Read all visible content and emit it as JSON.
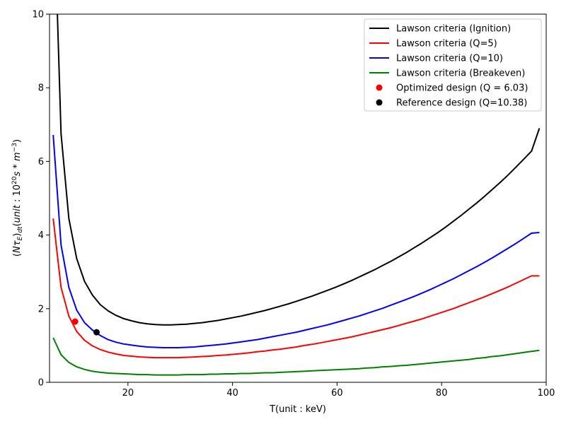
{
  "chart_data": {
    "type": "line",
    "xlabel": "T(unit : keV)",
    "ylabel": "(NτE)dt(unit:10^20 s*m^-3)",
    "xlim": [
      5,
      100
    ],
    "ylim": [
      0,
      10
    ],
    "xticks": [
      20,
      40,
      60,
      80,
      100
    ],
    "yticks": [
      0,
      2,
      4,
      6,
      8,
      10
    ],
    "legend_position": "top-right",
    "grid": false,
    "series": [
      {
        "name": "Lawson criteria (Ignition)",
        "color": "#000000",
        "x": [
          6.5,
          7.2,
          8.7,
          10.2,
          11.7,
          13.2,
          14.7,
          16.2,
          17.7,
          19.2,
          20.7,
          22.2,
          23.7,
          25.2,
          26.7,
          28.2,
          29.7,
          31.2,
          32.7,
          34.2,
          35.7,
          37.2,
          38.7,
          40.2,
          41.7,
          43.2,
          44.7,
          46.2,
          47.7,
          49.2,
          50.7,
          52.2,
          53.7,
          55.2,
          56.7,
          58.2,
          59.7,
          61.2,
          62.7,
          64.2,
          65.7,
          67.2,
          68.7,
          70.2,
          71.7,
          73.2,
          74.7,
          76.2,
          77.7,
          79.2,
          80.7,
          82.2,
          83.7,
          85.2,
          86.7,
          88.2,
          89.7,
          91.2,
          92.7,
          94.2,
          95.7,
          97.2,
          98.7
        ],
        "y": [
          10.0,
          6.75,
          4.45,
          3.36,
          2.74,
          2.37,
          2.11,
          1.94,
          1.82,
          1.73,
          1.67,
          1.62,
          1.59,
          1.57,
          1.56,
          1.56,
          1.57,
          1.58,
          1.6,
          1.62,
          1.65,
          1.68,
          1.72,
          1.76,
          1.8,
          1.85,
          1.9,
          1.95,
          2.01,
          2.07,
          2.13,
          2.2,
          2.27,
          2.34,
          2.42,
          2.5,
          2.58,
          2.67,
          2.76,
          2.86,
          2.96,
          3.06,
          3.17,
          3.28,
          3.4,
          3.52,
          3.65,
          3.78,
          3.92,
          4.06,
          4.21,
          4.37,
          4.53,
          4.7,
          4.87,
          5.05,
          5.24,
          5.43,
          5.63,
          5.84,
          6.06,
          6.28,
          6.9
        ]
      },
      {
        "name": "Lawson criteria (Q=5)",
        "color": "#ff0000",
        "x": [
          5.7,
          7.2,
          8.7,
          10.2,
          11.7,
          13.2,
          14.7,
          16.2,
          17.7,
          19.2,
          20.7,
          22.2,
          23.7,
          25.2,
          26.7,
          28.2,
          29.7,
          31.2,
          32.7,
          34.2,
          35.7,
          37.2,
          38.7,
          40.2,
          41.7,
          43.2,
          44.7,
          46.2,
          47.7,
          49.2,
          50.7,
          52.2,
          53.7,
          55.2,
          56.7,
          58.2,
          59.7,
          61.2,
          62.7,
          64.2,
          65.7,
          67.2,
          68.7,
          70.2,
          71.7,
          73.2,
          74.7,
          76.2,
          77.7,
          79.2,
          80.7,
          82.2,
          83.7,
          85.2,
          86.7,
          88.2,
          89.7,
          91.2,
          92.7,
          94.2,
          95.7,
          97.2,
          98.7
        ],
        "y": [
          4.45,
          2.58,
          1.8,
          1.38,
          1.14,
          0.99,
          0.89,
          0.82,
          0.77,
          0.73,
          0.71,
          0.69,
          0.68,
          0.67,
          0.67,
          0.67,
          0.67,
          0.68,
          0.69,
          0.7,
          0.71,
          0.73,
          0.74,
          0.76,
          0.78,
          0.8,
          0.83,
          0.85,
          0.88,
          0.9,
          0.93,
          0.96,
          1.0,
          1.03,
          1.07,
          1.11,
          1.15,
          1.19,
          1.23,
          1.28,
          1.33,
          1.38,
          1.43,
          1.48,
          1.54,
          1.6,
          1.66,
          1.72,
          1.79,
          1.86,
          1.93,
          2.0,
          2.08,
          2.16,
          2.24,
          2.32,
          2.41,
          2.5,
          2.59,
          2.69,
          2.79,
          2.89,
          2.89
        ]
      },
      {
        "name": "Lawson criteria (Q=10)",
        "color": "#0000ff",
        "x": [
          5.7,
          7.2,
          8.7,
          10.2,
          11.7,
          13.2,
          14.7,
          16.2,
          17.7,
          19.2,
          20.7,
          22.2,
          23.7,
          25.2,
          26.7,
          28.2,
          29.7,
          31.2,
          32.7,
          34.2,
          35.7,
          37.2,
          38.7,
          40.2,
          41.7,
          43.2,
          44.7,
          46.2,
          47.7,
          49.2,
          50.7,
          52.2,
          53.7,
          55.2,
          56.7,
          58.2,
          59.7,
          61.2,
          62.7,
          64.2,
          65.7,
          67.2,
          68.7,
          70.2,
          71.7,
          73.2,
          74.7,
          76.2,
          77.7,
          79.2,
          80.7,
          82.2,
          83.7,
          85.2,
          86.7,
          88.2,
          89.7,
          91.2,
          92.7,
          94.2,
          95.7,
          97.2,
          98.7
        ],
        "y": [
          6.72,
          3.73,
          2.58,
          1.96,
          1.62,
          1.42,
          1.27,
          1.16,
          1.09,
          1.04,
          1.01,
          0.98,
          0.96,
          0.95,
          0.94,
          0.94,
          0.94,
          0.95,
          0.96,
          0.98,
          1.0,
          1.02,
          1.04,
          1.07,
          1.1,
          1.13,
          1.16,
          1.2,
          1.24,
          1.28,
          1.32,
          1.36,
          1.41,
          1.46,
          1.51,
          1.56,
          1.62,
          1.68,
          1.74,
          1.8,
          1.87,
          1.94,
          2.01,
          2.09,
          2.17,
          2.25,
          2.33,
          2.42,
          2.51,
          2.61,
          2.71,
          2.81,
          2.92,
          3.03,
          3.14,
          3.26,
          3.38,
          3.51,
          3.64,
          3.77,
          3.91,
          4.05,
          4.07
        ]
      },
      {
        "name": "Lawson criteria (Breakeven)",
        "color": "#008000",
        "x": [
          5.7,
          7.2,
          8.7,
          10.2,
          11.7,
          13.2,
          14.7,
          16.2,
          17.7,
          19.2,
          20.7,
          22.2,
          23.7,
          25.2,
          26.7,
          28.2,
          29.7,
          31.2,
          32.7,
          34.2,
          35.7,
          37.2,
          38.7,
          40.2,
          41.7,
          43.2,
          44.7,
          46.2,
          47.7,
          49.2,
          50.7,
          52.2,
          53.7,
          55.2,
          56.7,
          58.2,
          59.7,
          61.2,
          62.7,
          64.2,
          65.7,
          67.2,
          68.7,
          70.2,
          71.7,
          73.2,
          74.7,
          76.2,
          77.7,
          79.2,
          80.7,
          82.2,
          83.7,
          85.2,
          86.7,
          88.2,
          89.7,
          91.2,
          92.7,
          94.2,
          95.7,
          97.2,
          98.7
        ],
        "y": [
          1.21,
          0.75,
          0.54,
          0.42,
          0.35,
          0.3,
          0.27,
          0.25,
          0.24,
          0.23,
          0.22,
          0.21,
          0.21,
          0.2,
          0.2,
          0.2,
          0.2,
          0.21,
          0.21,
          0.21,
          0.22,
          0.22,
          0.23,
          0.23,
          0.24,
          0.24,
          0.25,
          0.26,
          0.26,
          0.27,
          0.28,
          0.29,
          0.3,
          0.31,
          0.32,
          0.33,
          0.34,
          0.35,
          0.36,
          0.37,
          0.39,
          0.4,
          0.42,
          0.43,
          0.45,
          0.46,
          0.48,
          0.5,
          0.52,
          0.54,
          0.56,
          0.58,
          0.6,
          0.62,
          0.65,
          0.67,
          0.7,
          0.72,
          0.75,
          0.78,
          0.81,
          0.84,
          0.87
        ]
      }
    ],
    "points": [
      {
        "name": "Optimized design (Q = 6.03)",
        "color": "#ff0000",
        "x": 9.9,
        "y": 1.65
      },
      {
        "name": "Reference design (Q=10.38)",
        "color": "#000000",
        "x": 14.0,
        "y": 1.36
      }
    ]
  }
}
